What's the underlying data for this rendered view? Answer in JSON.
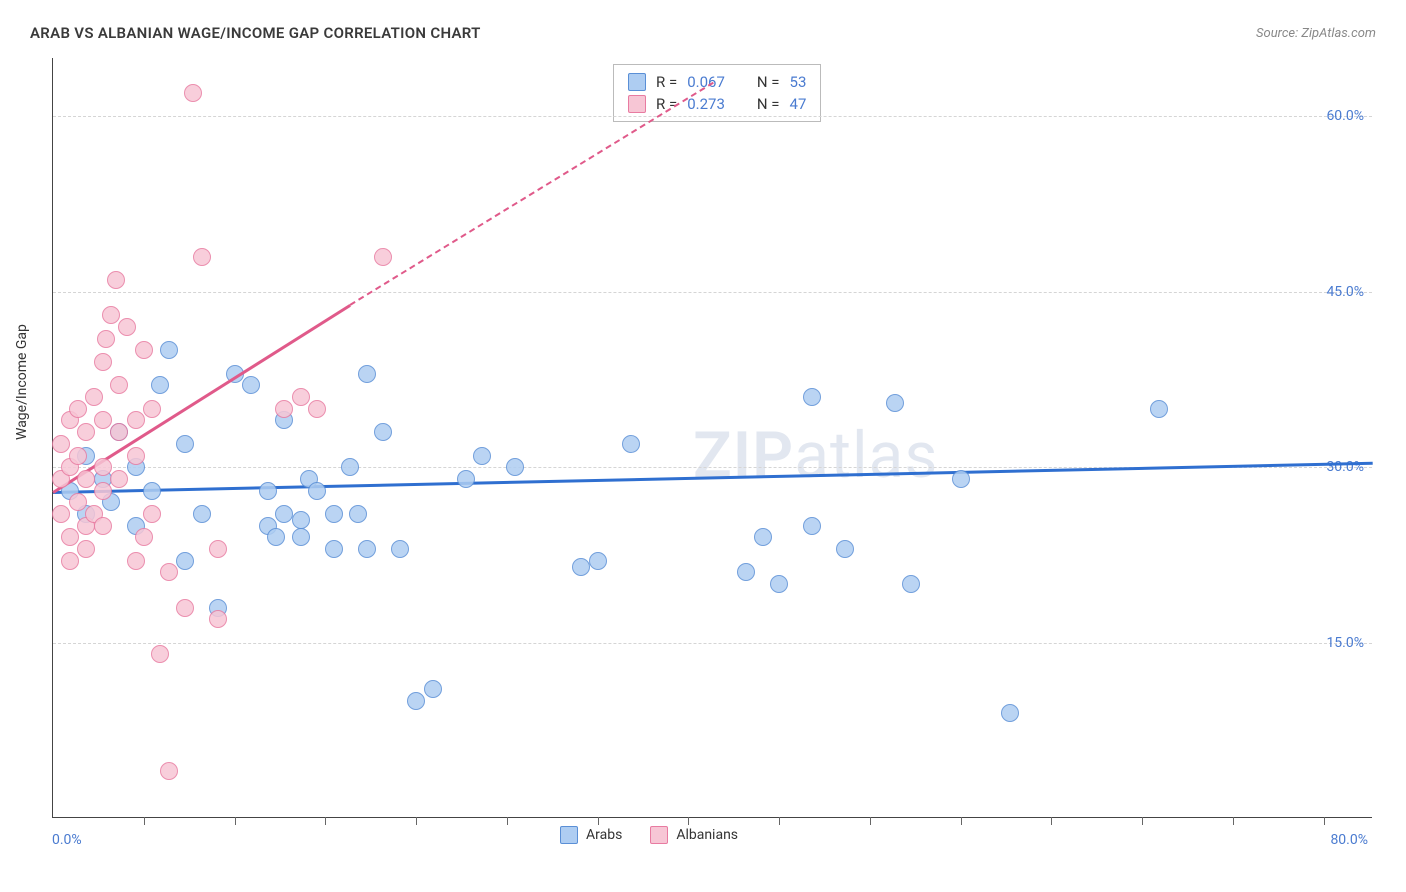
{
  "title": "ARAB VS ALBANIAN WAGE/INCOME GAP CORRELATION CHART",
  "source": "Source: ZipAtlas.com",
  "y_axis_label": "Wage/Income Gap",
  "watermark_a": "ZIP",
  "watermark_b": "atlas",
  "x_origin": "0.0%",
  "x_max": "80.0%",
  "chart": {
    "type": "scatter",
    "xlim": [
      0,
      80
    ],
    "ylim": [
      0,
      65
    ],
    "y_ticks": [
      15,
      30,
      45,
      60
    ],
    "y_tick_labels": [
      "15.0%",
      "30.0%",
      "45.0%",
      "60.0%"
    ],
    "x_tick_positions": [
      5.5,
      11,
      16.5,
      22,
      27.5,
      33,
      38.5,
      44,
      49.5,
      55,
      60.5,
      66,
      71.5,
      77
    ],
    "background_color": "#ffffff",
    "grid_color": "#d5d5d5",
    "series": [
      {
        "name": "Arabs",
        "fill": "#aecdf2",
        "stroke": "#5a8fd6",
        "trend_color": "#2f6fd0",
        "trend": {
          "x1": 0,
          "y1": 28.0,
          "x2": 80,
          "y2": 30.5
        },
        "points": [
          [
            1,
            28
          ],
          [
            2,
            26
          ],
          [
            2,
            31
          ],
          [
            3,
            29
          ],
          [
            3.5,
            27
          ],
          [
            4,
            33
          ],
          [
            5,
            30
          ],
          [
            5,
            25
          ],
          [
            6,
            28
          ],
          [
            6.5,
            37
          ],
          [
            7,
            40
          ],
          [
            8,
            32
          ],
          [
            8,
            22
          ],
          [
            9,
            26
          ],
          [
            10,
            18
          ],
          [
            11,
            38
          ],
          [
            12,
            37
          ],
          [
            13,
            28
          ],
          [
            13,
            25
          ],
          [
            13.5,
            24
          ],
          [
            14,
            34
          ],
          [
            14,
            26
          ],
          [
            15,
            25.5
          ],
          [
            15,
            24
          ],
          [
            15.5,
            29
          ],
          [
            16,
            28
          ],
          [
            17,
            26
          ],
          [
            17,
            23
          ],
          [
            18,
            30
          ],
          [
            18.5,
            26
          ],
          [
            19,
            23
          ],
          [
            19,
            38
          ],
          [
            20,
            33
          ],
          [
            21,
            23
          ],
          [
            22,
            10
          ],
          [
            23,
            11
          ],
          [
            25,
            29
          ],
          [
            26,
            31
          ],
          [
            28,
            30
          ],
          [
            32,
            21.5
          ],
          [
            33,
            22
          ],
          [
            35,
            32
          ],
          [
            42,
            21
          ],
          [
            43,
            24
          ],
          [
            44,
            20
          ],
          [
            46,
            36
          ],
          [
            46,
            25
          ],
          [
            48,
            23
          ],
          [
            51,
            35.5
          ],
          [
            52,
            20
          ],
          [
            55,
            29
          ],
          [
            58,
            9
          ],
          [
            67,
            35
          ]
        ]
      },
      {
        "name": "Albanians",
        "fill": "#f7c6d5",
        "stroke": "#e87ba1",
        "trend_color": "#e05a8a",
        "trend_solid": {
          "x1": 0,
          "y1": 28,
          "x2": 18,
          "y2": 44
        },
        "trend_dashed": {
          "x1": 18,
          "y1": 44,
          "x2": 40,
          "y2": 63
        },
        "points": [
          [
            0.5,
            29
          ],
          [
            0.5,
            26
          ],
          [
            0.5,
            32
          ],
          [
            1,
            34
          ],
          [
            1,
            30
          ],
          [
            1,
            24
          ],
          [
            1,
            22
          ],
          [
            1.5,
            27
          ],
          [
            1.5,
            31
          ],
          [
            1.5,
            35
          ],
          [
            2,
            33
          ],
          [
            2,
            29
          ],
          [
            2,
            25
          ],
          [
            2,
            23
          ],
          [
            2.5,
            36
          ],
          [
            2.5,
            26
          ],
          [
            3,
            39
          ],
          [
            3,
            34
          ],
          [
            3,
            30
          ],
          [
            3,
            28
          ],
          [
            3,
            25
          ],
          [
            3.2,
            41
          ],
          [
            3.5,
            43
          ],
          [
            3.8,
            46
          ],
          [
            4,
            37
          ],
          [
            4,
            33
          ],
          [
            4,
            29
          ],
          [
            4.5,
            42
          ],
          [
            5,
            34
          ],
          [
            5,
            31
          ],
          [
            5,
            22
          ],
          [
            5.5,
            40
          ],
          [
            5.5,
            24
          ],
          [
            6,
            35
          ],
          [
            6,
            26
          ],
          [
            6.5,
            14
          ],
          [
            7,
            21
          ],
          [
            7,
            4
          ],
          [
            8,
            18
          ],
          [
            8.5,
            62
          ],
          [
            9,
            48
          ],
          [
            10,
            23
          ],
          [
            10,
            17
          ],
          [
            14,
            35
          ],
          [
            15,
            36
          ],
          [
            16,
            35
          ],
          [
            20,
            48
          ]
        ]
      }
    ]
  },
  "stats": [
    {
      "swatch_fill": "#aecdf2",
      "swatch_stroke": "#5a8fd6",
      "r_label": "R =",
      "r": "0.067",
      "n_label": "N =",
      "n": "53"
    },
    {
      "swatch_fill": "#f7c6d5",
      "swatch_stroke": "#e87ba1",
      "r_label": "R =",
      "r": "0.273",
      "n_label": "N =",
      "n": "47"
    }
  ],
  "legend": [
    {
      "swatch_fill": "#aecdf2",
      "swatch_stroke": "#5a8fd6",
      "label": "Arabs"
    },
    {
      "swatch_fill": "#f7c6d5",
      "swatch_stroke": "#e87ba1",
      "label": "Albanians"
    }
  ]
}
